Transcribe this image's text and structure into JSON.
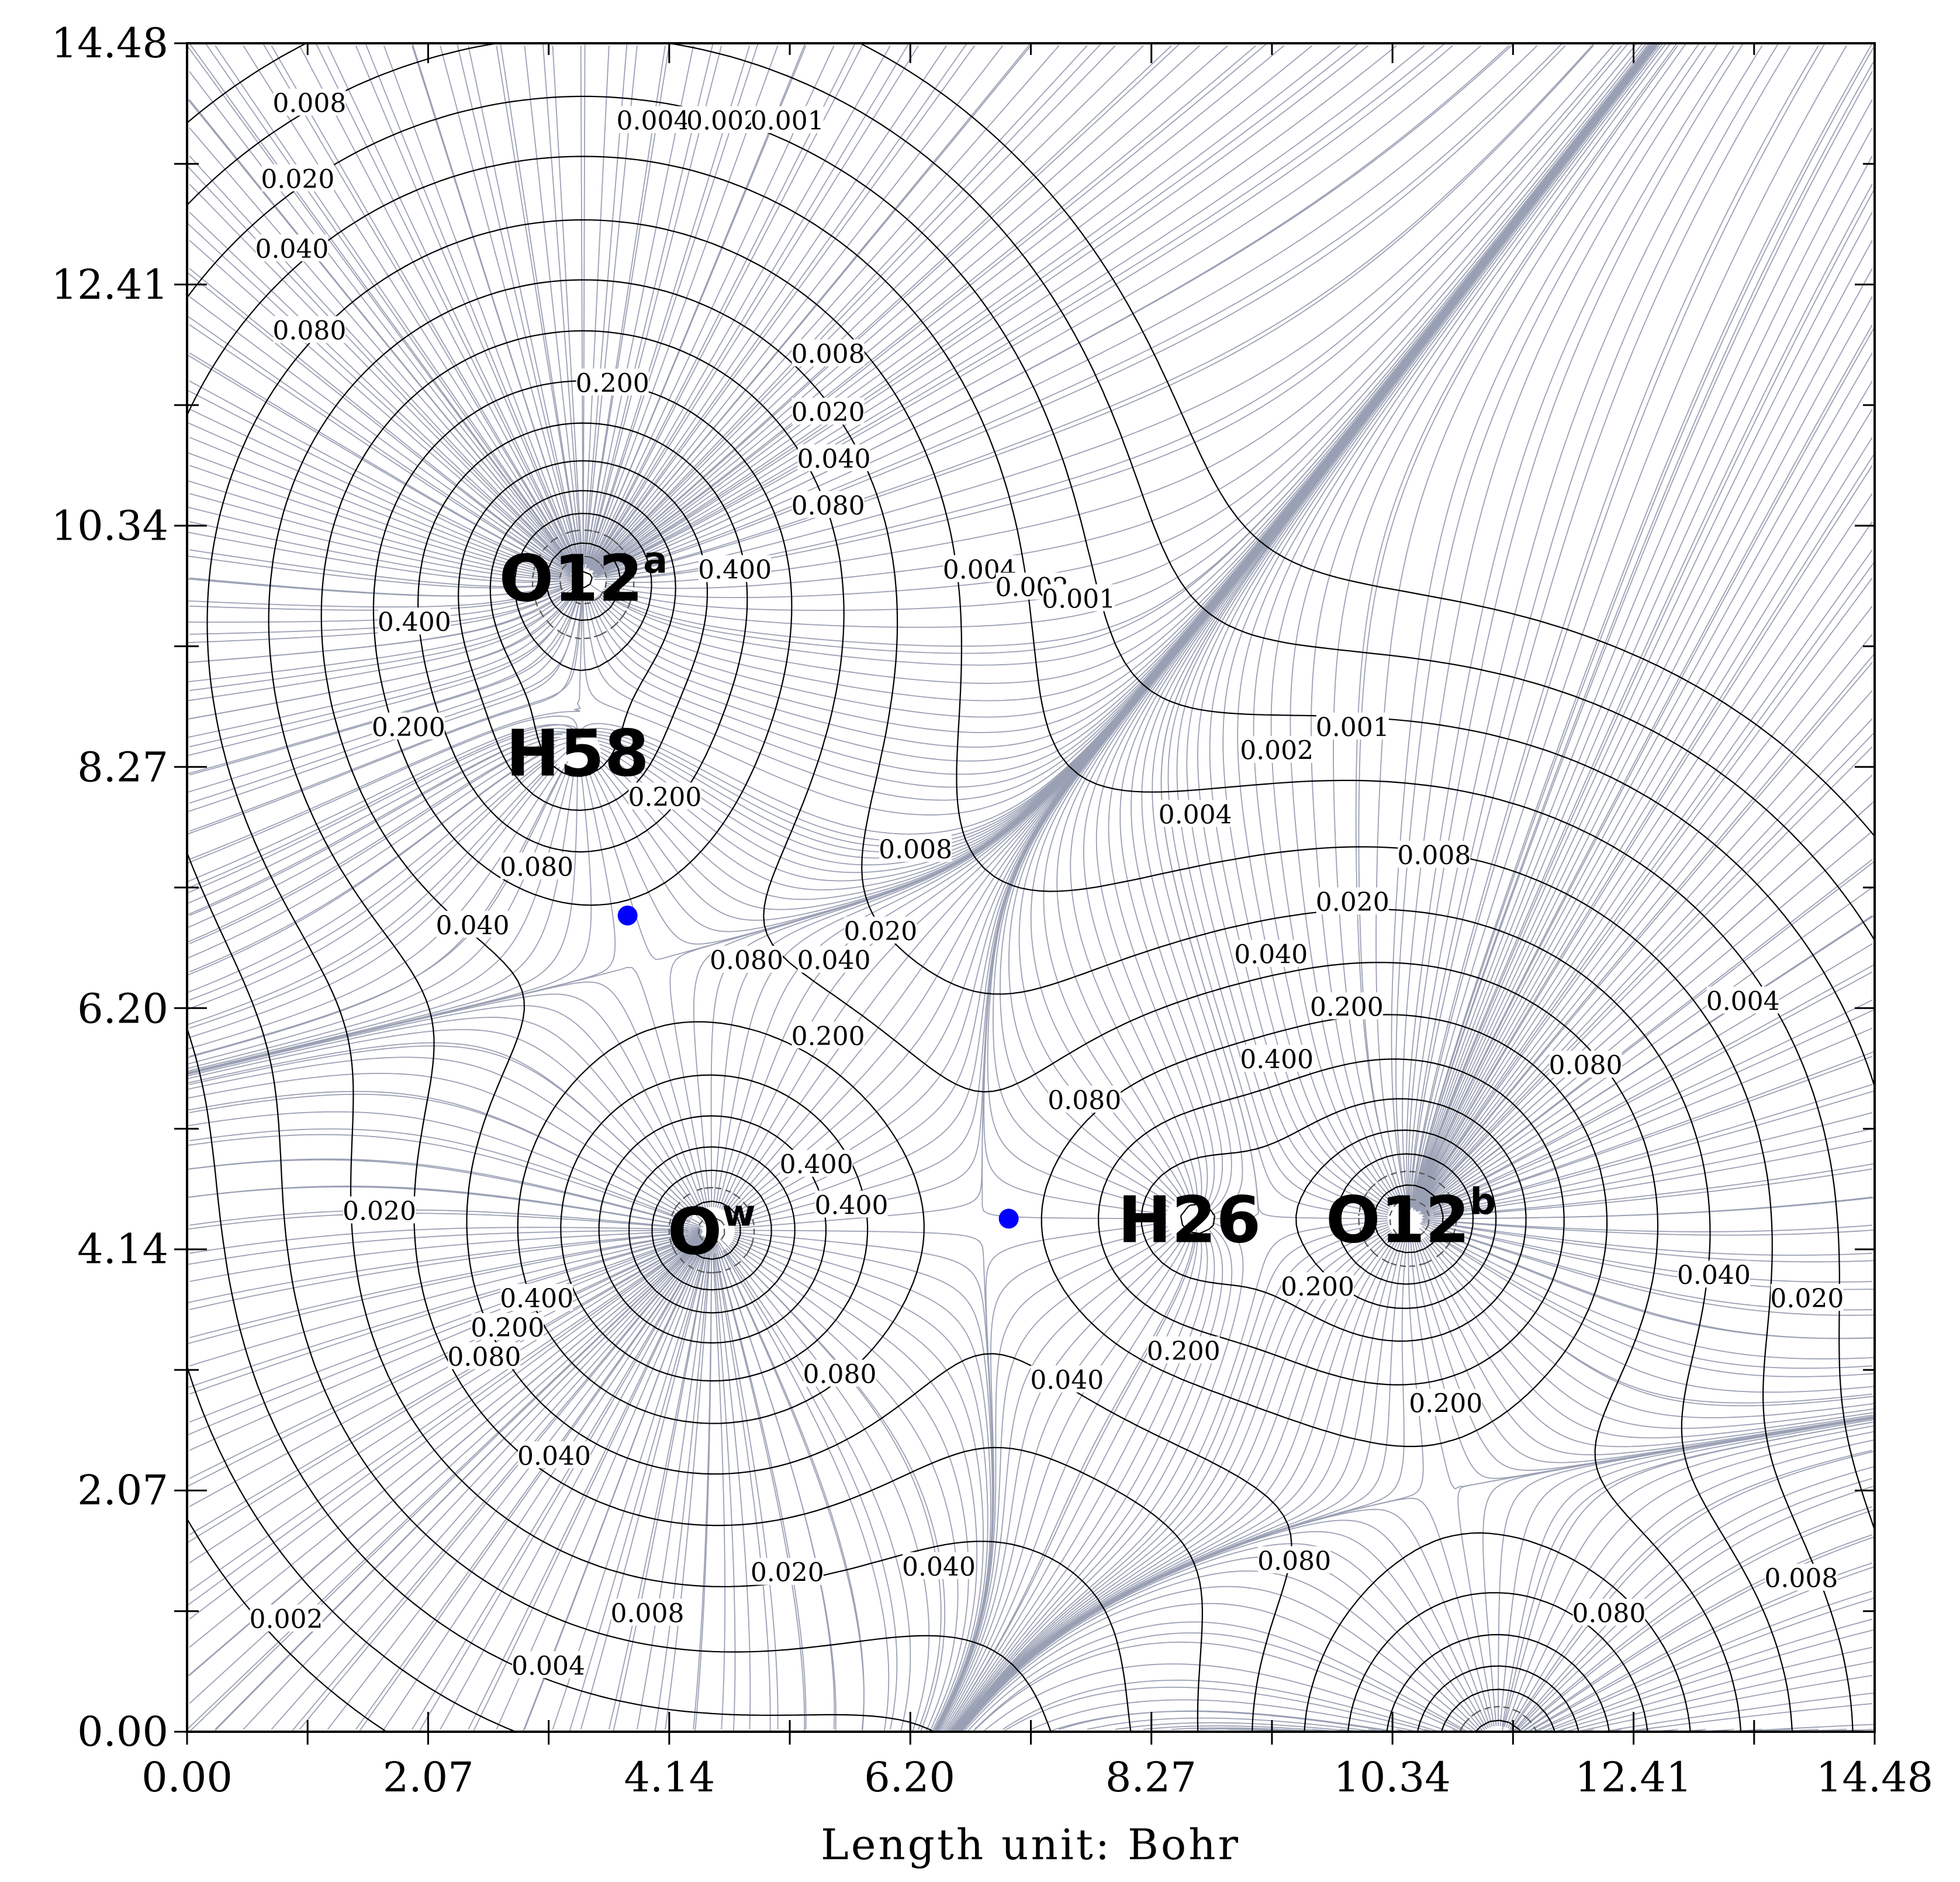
{
  "chart_data": {
    "type": "contour",
    "xlabel": "Length unit: Bohr",
    "ylabel": "",
    "xlim": [
      0.0,
      14.48
    ],
    "ylim": [
      0.0,
      14.48
    ],
    "x_ticks": [
      "0.00",
      "2.07",
      "4.14",
      "6.20",
      "8.27",
      "10.34",
      "12.41",
      "14.48"
    ],
    "y_ticks": [
      "0.00",
      "2.07",
      "4.14",
      "6.20",
      "8.27",
      "10.34",
      "12.41",
      "14.48"
    ],
    "grid": false,
    "colors": {
      "contour": "#000000",
      "gradient_lines": "#9aa0b4",
      "critical_point": "#0000ff",
      "negative_contour": "#555555"
    },
    "atoms": [
      {
        "name": "O12",
        "sup": "a",
        "x": 3.4,
        "y": 9.9
      },
      {
        "name": "H58",
        "sup": "",
        "x": 3.35,
        "y": 8.4
      },
      {
        "name": "O",
        "sup": "w",
        "x": 4.5,
        "y": 4.3
      },
      {
        "name": "H26",
        "sup": "",
        "x": 8.6,
        "y": 4.4
      },
      {
        "name": "O12",
        "sup": "b",
        "x": 10.5,
        "y": 4.4
      }
    ],
    "critical_points": [
      {
        "x": 3.78,
        "y": 7.0
      },
      {
        "x": 7.05,
        "y": 4.4
      }
    ],
    "contour_labels": [
      {
        "text": "0.008",
        "x": 1.05,
        "y": 13.95
      },
      {
        "text": "0.020",
        "x": 0.95,
        "y": 13.3
      },
      {
        "text": "0.040",
        "x": 0.9,
        "y": 12.7
      },
      {
        "text": "0.080",
        "x": 1.05,
        "y": 12.0
      },
      {
        "text": "0.004",
        "x": 4.0,
        "y": 13.8
      },
      {
        "text": "0.002",
        "x": 4.6,
        "y": 13.8
      },
      {
        "text": "0.001",
        "x": 5.15,
        "y": 13.8
      },
      {
        "text": "0.200",
        "x": 3.65,
        "y": 11.55
      },
      {
        "text": "0.008",
        "x": 5.5,
        "y": 11.8
      },
      {
        "text": "0.020",
        "x": 5.5,
        "y": 11.3
      },
      {
        "text": "0.040",
        "x": 5.55,
        "y": 10.9
      },
      {
        "text": "0.080",
        "x": 5.5,
        "y": 10.5
      },
      {
        "text": "0.400",
        "x": 4.7,
        "y": 9.95
      },
      {
        "text": "0.400",
        "x": 1.95,
        "y": 9.5
      },
      {
        "text": "0.200",
        "x": 1.9,
        "y": 8.6
      },
      {
        "text": "0.200",
        "x": 4.1,
        "y": 8.0
      },
      {
        "text": "0.080",
        "x": 3.0,
        "y": 7.4
      },
      {
        "text": "0.040",
        "x": 2.45,
        "y": 6.9
      },
      {
        "text": "0.004",
        "x": 6.8,
        "y": 9.95
      },
      {
        "text": "0.002",
        "x": 7.25,
        "y": 9.8
      },
      {
        "text": "0.001",
        "x": 7.65,
        "y": 9.7
      },
      {
        "text": "0.001",
        "x": 10.0,
        "y": 8.6
      },
      {
        "text": "0.002",
        "x": 9.35,
        "y": 8.4
      },
      {
        "text": "0.004",
        "x": 8.65,
        "y": 7.85
      },
      {
        "text": "0.008",
        "x": 6.25,
        "y": 7.55
      },
      {
        "text": "0.008",
        "x": 10.7,
        "y": 7.5
      },
      {
        "text": "0.020",
        "x": 5.95,
        "y": 6.85
      },
      {
        "text": "0.020",
        "x": 10.0,
        "y": 7.1
      },
      {
        "text": "0.040",
        "x": 5.55,
        "y": 6.6
      },
      {
        "text": "0.040",
        "x": 9.3,
        "y": 6.65
      },
      {
        "text": "0.080",
        "x": 4.8,
        "y": 6.6
      },
      {
        "text": "0.200",
        "x": 5.5,
        "y": 5.95
      },
      {
        "text": "0.200",
        "x": 9.95,
        "y": 6.2
      },
      {
        "text": "0.400",
        "x": 9.35,
        "y": 5.75
      },
      {
        "text": "0.400",
        "x": 5.7,
        "y": 4.5
      },
      {
        "text": "0.400",
        "x": 5.4,
        "y": 4.85
      },
      {
        "text": "0.080",
        "x": 7.7,
        "y": 5.4
      },
      {
        "text": "0.080",
        "x": 12.0,
        "y": 5.7
      },
      {
        "text": "0.004",
        "x": 13.35,
        "y": 6.25
      },
      {
        "text": "0.020",
        "x": 1.65,
        "y": 4.45
      },
      {
        "text": "0.400",
        "x": 3.0,
        "y": 3.7
      },
      {
        "text": "0.200",
        "x": 2.75,
        "y": 3.45
      },
      {
        "text": "0.080",
        "x": 2.55,
        "y": 3.2
      },
      {
        "text": "0.080",
        "x": 5.6,
        "y": 3.05
      },
      {
        "text": "0.040",
        "x": 3.15,
        "y": 2.35
      },
      {
        "text": "0.040",
        "x": 7.55,
        "y": 3.0
      },
      {
        "text": "0.200",
        "x": 8.55,
        "y": 3.25
      },
      {
        "text": "0.200",
        "x": 10.8,
        "y": 2.8
      },
      {
        "text": "0.200",
        "x": 9.7,
        "y": 3.8
      },
      {
        "text": "0.040",
        "x": 13.1,
        "y": 3.9
      },
      {
        "text": "0.020",
        "x": 13.9,
        "y": 3.7
      },
      {
        "text": "0.020",
        "x": 5.15,
        "y": 1.35
      },
      {
        "text": "0.040",
        "x": 6.45,
        "y": 1.4
      },
      {
        "text": "0.080",
        "x": 9.5,
        "y": 1.45
      },
      {
        "text": "0.080",
        "x": 12.2,
        "y": 1.0
      },
      {
        "text": "0.008",
        "x": 13.85,
        "y": 1.3
      },
      {
        "text": "0.008",
        "x": 3.95,
        "y": 1.0
      },
      {
        "text": "0.004",
        "x": 3.1,
        "y": 0.55
      },
      {
        "text": "0.002",
        "x": 0.85,
        "y": 0.95
      }
    ]
  }
}
